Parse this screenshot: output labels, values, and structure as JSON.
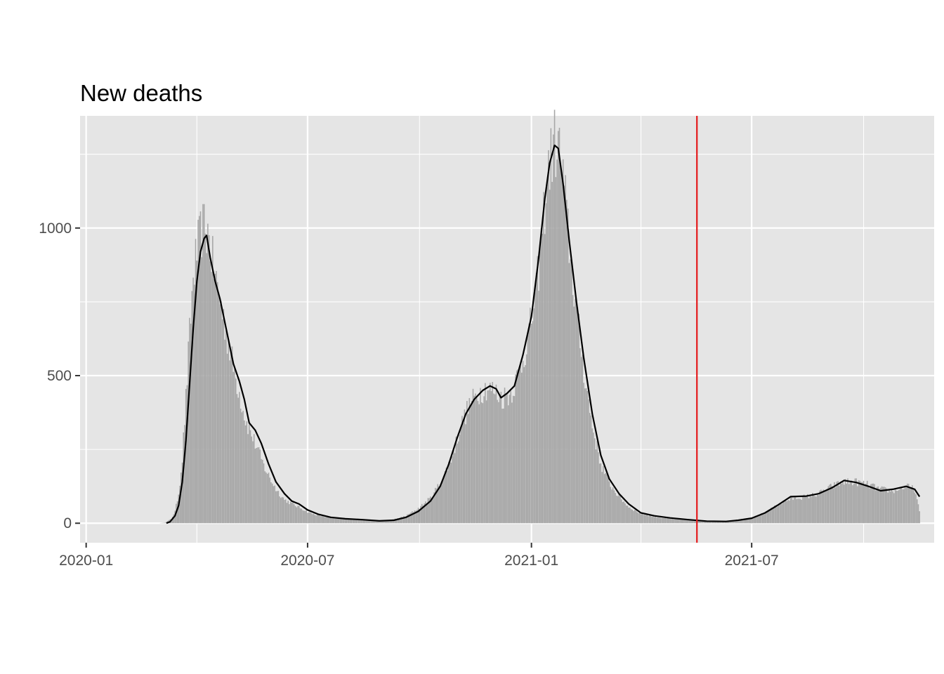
{
  "chart_data": {
    "type": "bar",
    "title": "New deaths",
    "xlabel": "",
    "ylabel": "",
    "x_range": [
      "2019-12-27",
      "2021-11-28"
    ],
    "ylim": [
      -66,
      1380
    ],
    "x_ticks": [
      {
        "date": "2020-01-01",
        "label": "2020-01"
      },
      {
        "date": "2020-07-01",
        "label": "2020-07"
      },
      {
        "date": "2021-01-01",
        "label": "2021-01"
      },
      {
        "date": "2021-07-01",
        "label": "2021-07"
      }
    ],
    "x_minor_ticks": [
      "2020-04-01",
      "2020-10-01",
      "2021-04-01",
      "2021-10-01"
    ],
    "y_ticks": [
      {
        "value": 0,
        "label": "0"
      },
      {
        "value": 500,
        "label": "500"
      },
      {
        "value": 1000,
        "label": "1000"
      }
    ],
    "y_minor_ticks": [
      250,
      750,
      1250
    ],
    "grid": true,
    "legend": "none",
    "vline": {
      "date": "2021-05-17",
      "color": "#e41a1c"
    },
    "colors": {
      "panel": "#e5e5e5",
      "grid": "#ffffff",
      "bars": "#a6a6a6",
      "smooth_line": "#000000",
      "tick_label": "#4d4d4d"
    },
    "series": [
      {
        "type": "bar",
        "x_start": "2020-03-01",
        "x_end": "2021-11-16",
        "interval": "day",
        "keypoints": [
          [
            "2020-03-01",
            0
          ],
          [
            "2020-03-06",
            2
          ],
          [
            "2020-03-11",
            15
          ],
          [
            "2020-03-14",
            40
          ],
          [
            "2020-03-17",
            100
          ],
          [
            "2020-03-20",
            220
          ],
          [
            "2020-03-23",
            420
          ],
          [
            "2020-03-26",
            640
          ],
          [
            "2020-03-29",
            830
          ],
          [
            "2020-04-01",
            920
          ],
          [
            "2020-04-05",
            990
          ],
          [
            "2020-04-08",
            1010
          ],
          [
            "2020-04-11",
            960
          ],
          [
            "2020-04-15",
            860
          ],
          [
            "2020-04-20",
            760
          ],
          [
            "2020-04-25",
            650
          ],
          [
            "2020-05-01",
            530
          ],
          [
            "2020-05-06",
            440
          ],
          [
            "2020-05-11",
            350
          ],
          [
            "2020-05-16",
            300
          ],
          [
            "2020-05-21",
            250
          ],
          [
            "2020-05-26",
            195
          ],
          [
            "2020-06-01",
            145
          ],
          [
            "2020-06-06",
            110
          ],
          [
            "2020-06-12",
            80
          ],
          [
            "2020-06-20",
            62
          ],
          [
            "2020-06-27",
            48
          ],
          [
            "2020-07-04",
            33
          ],
          [
            "2020-07-15",
            22
          ],
          [
            "2020-07-25",
            16
          ],
          [
            "2020-08-05",
            13
          ],
          [
            "2020-08-20",
            10
          ],
          [
            "2020-09-01",
            9
          ],
          [
            "2020-09-10",
            13
          ],
          [
            "2020-09-20",
            25
          ],
          [
            "2020-09-30",
            50
          ],
          [
            "2020-10-10",
            85
          ],
          [
            "2020-10-20",
            150
          ],
          [
            "2020-10-28",
            230
          ],
          [
            "2020-11-04",
            330
          ],
          [
            "2020-11-11",
            400
          ],
          [
            "2020-11-18",
            440
          ],
          [
            "2020-11-25",
            460
          ],
          [
            "2020-12-02",
            445
          ],
          [
            "2020-12-08",
            425
          ],
          [
            "2020-12-15",
            440
          ],
          [
            "2020-12-22",
            510
          ],
          [
            "2020-12-29",
            620
          ],
          [
            "2021-01-05",
            780
          ],
          [
            "2021-01-10",
            1000
          ],
          [
            "2021-01-15",
            1200
          ],
          [
            "2021-01-20",
            1290
          ],
          [
            "2021-01-24",
            1260
          ],
          [
            "2021-01-28",
            1130
          ],
          [
            "2021-02-02",
            900
          ],
          [
            "2021-02-08",
            680
          ],
          [
            "2021-02-14",
            490
          ],
          [
            "2021-02-20",
            330
          ],
          [
            "2021-02-27",
            200
          ],
          [
            "2021-03-06",
            135
          ],
          [
            "2021-03-14",
            90
          ],
          [
            "2021-03-22",
            55
          ],
          [
            "2021-04-01",
            32
          ],
          [
            "2021-04-12",
            22
          ],
          [
            "2021-04-25",
            15
          ],
          [
            "2021-05-10",
            11
          ],
          [
            "2021-05-25",
            8
          ],
          [
            "2021-06-10",
            8
          ],
          [
            "2021-06-20",
            12
          ],
          [
            "2021-07-01",
            18
          ],
          [
            "2021-07-10",
            33
          ],
          [
            "2021-07-20",
            55
          ],
          [
            "2021-07-28",
            75
          ],
          [
            "2021-08-05",
            85
          ],
          [
            "2021-08-15",
            90
          ],
          [
            "2021-08-25",
            100
          ],
          [
            "2021-09-05",
            125
          ],
          [
            "2021-09-15",
            140
          ],
          [
            "2021-09-25",
            140
          ],
          [
            "2021-10-05",
            130
          ],
          [
            "2021-10-15",
            115
          ],
          [
            "2021-10-25",
            110
          ],
          [
            "2021-11-05",
            125
          ],
          [
            "2021-11-12",
            115
          ],
          [
            "2021-11-16",
            40
          ]
        ]
      },
      {
        "type": "line",
        "x_start": "2020-03-07",
        "x_end": "2021-11-16",
        "keypoints": [
          [
            "2020-03-07",
            0
          ],
          [
            "2020-03-10",
            5
          ],
          [
            "2020-03-14",
            25
          ],
          [
            "2020-03-17",
            60
          ],
          [
            "2020-03-20",
            140
          ],
          [
            "2020-03-23",
            280
          ],
          [
            "2020-03-26",
            470
          ],
          [
            "2020-03-29",
            660
          ],
          [
            "2020-04-01",
            820
          ],
          [
            "2020-04-04",
            920
          ],
          [
            "2020-04-07",
            965
          ],
          [
            "2020-04-09",
            975
          ],
          [
            "2020-04-12",
            900
          ],
          [
            "2020-04-16",
            820
          ],
          [
            "2020-04-20",
            760
          ],
          [
            "2020-04-25",
            660
          ],
          [
            "2020-05-01",
            540
          ],
          [
            "2020-05-06",
            480
          ],
          [
            "2020-05-10",
            420
          ],
          [
            "2020-05-14",
            340
          ],
          [
            "2020-05-19",
            315
          ],
          [
            "2020-05-24",
            270
          ],
          [
            "2020-05-30",
            200
          ],
          [
            "2020-06-05",
            140
          ],
          [
            "2020-06-12",
            100
          ],
          [
            "2020-06-18",
            75
          ],
          [
            "2020-06-24",
            65
          ],
          [
            "2020-07-01",
            45
          ],
          [
            "2020-07-10",
            30
          ],
          [
            "2020-07-20",
            20
          ],
          [
            "2020-08-01",
            15
          ],
          [
            "2020-08-15",
            12
          ],
          [
            "2020-08-29",
            8
          ],
          [
            "2020-09-10",
            10
          ],
          [
            "2020-09-20",
            20
          ],
          [
            "2020-09-30",
            40
          ],
          [
            "2020-10-10",
            75
          ],
          [
            "2020-10-18",
            125
          ],
          [
            "2020-10-25",
            200
          ],
          [
            "2020-11-01",
            290
          ],
          [
            "2020-11-08",
            370
          ],
          [
            "2020-11-15",
            420
          ],
          [
            "2020-11-22",
            450
          ],
          [
            "2020-11-28",
            465
          ],
          [
            "2020-12-03",
            455
          ],
          [
            "2020-12-07",
            425
          ],
          [
            "2020-12-12",
            440
          ],
          [
            "2020-12-18",
            465
          ],
          [
            "2020-12-25",
            570
          ],
          [
            "2021-01-01",
            700
          ],
          [
            "2021-01-07",
            900
          ],
          [
            "2021-01-12",
            1100
          ],
          [
            "2021-01-16",
            1220
          ],
          [
            "2021-01-20",
            1280
          ],
          [
            "2021-01-23",
            1270
          ],
          [
            "2021-01-27",
            1150
          ],
          [
            "2021-02-01",
            960
          ],
          [
            "2021-02-07",
            750
          ],
          [
            "2021-02-13",
            560
          ],
          [
            "2021-02-20",
            370
          ],
          [
            "2021-02-27",
            230
          ],
          [
            "2021-03-06",
            150
          ],
          [
            "2021-03-14",
            100
          ],
          [
            "2021-03-22",
            65
          ],
          [
            "2021-04-01",
            35
          ],
          [
            "2021-04-12",
            25
          ],
          [
            "2021-04-25",
            18
          ],
          [
            "2021-05-10",
            12
          ],
          [
            "2021-05-25",
            7
          ],
          [
            "2021-06-10",
            6
          ],
          [
            "2021-06-20",
            10
          ],
          [
            "2021-07-01",
            17
          ],
          [
            "2021-07-12",
            35
          ],
          [
            "2021-07-22",
            60
          ],
          [
            "2021-08-02",
            90
          ],
          [
            "2021-08-15",
            92
          ],
          [
            "2021-08-25",
            100
          ],
          [
            "2021-09-05",
            120
          ],
          [
            "2021-09-15",
            145
          ],
          [
            "2021-09-25",
            138
          ],
          [
            "2021-10-05",
            125
          ],
          [
            "2021-10-15",
            110
          ],
          [
            "2021-10-25",
            115
          ],
          [
            "2021-11-05",
            125
          ],
          [
            "2021-11-12",
            115
          ],
          [
            "2021-11-16",
            90
          ]
        ]
      }
    ]
  }
}
